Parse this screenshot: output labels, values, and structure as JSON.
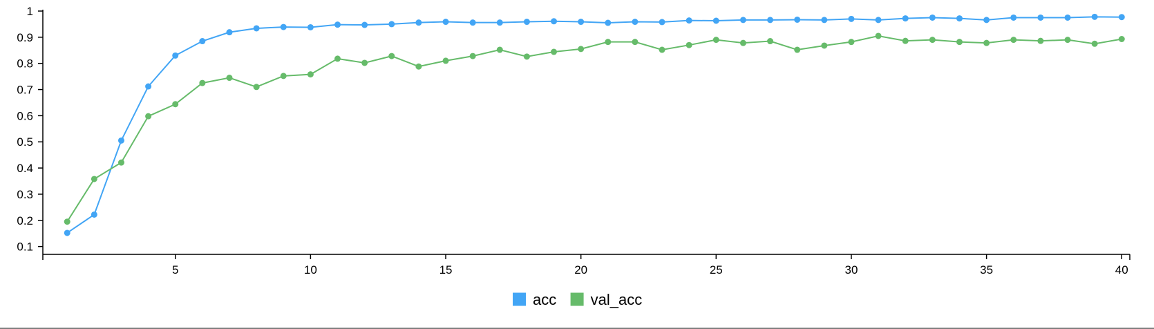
{
  "chart_data": {
    "type": "line",
    "title": "",
    "xlabel": "",
    "ylabel": "",
    "x": [
      1,
      2,
      3,
      4,
      5,
      6,
      7,
      8,
      9,
      10,
      11,
      12,
      13,
      14,
      15,
      16,
      17,
      18,
      19,
      20,
      21,
      22,
      23,
      24,
      25,
      26,
      27,
      28,
      29,
      30,
      31,
      32,
      33,
      34,
      35,
      36,
      37,
      38,
      39,
      40
    ],
    "xlim": [
      0.1,
      40.3
    ],
    "ylim": [
      0.07,
      1.0
    ],
    "xticks": [
      5,
      10,
      15,
      20,
      25,
      30,
      35,
      40
    ],
    "yticks": [
      0.1,
      0.2,
      0.3,
      0.4,
      0.5,
      0.6,
      0.7,
      0.8,
      0.9,
      1
    ],
    "xtick_labels": [
      "5",
      "10",
      "15",
      "20",
      "25",
      "30",
      "35",
      "40"
    ],
    "ytick_labels": [
      "0.1",
      "0.2",
      "0.3",
      "0.4",
      "0.5",
      "0.6",
      "0.7",
      "0.8",
      "0.9",
      "1"
    ],
    "grid": false,
    "legend_position": "bottom-center",
    "series": [
      {
        "name": "acc",
        "color": "#42a5f5",
        "values": [
          0.152,
          0.222,
          0.505,
          0.712,
          0.83,
          0.885,
          0.919,
          0.934,
          0.939,
          0.938,
          0.948,
          0.947,
          0.95,
          0.956,
          0.959,
          0.956,
          0.956,
          0.959,
          0.961,
          0.959,
          0.955,
          0.959,
          0.958,
          0.964,
          0.963,
          0.966,
          0.966,
          0.967,
          0.966,
          0.97,
          0.966,
          0.972,
          0.975,
          0.972,
          0.966,
          0.975,
          0.975,
          0.975,
          0.978,
          0.977
        ]
      },
      {
        "name": "val_acc",
        "color": "#66bb6a",
        "values": [
          0.195,
          0.358,
          0.421,
          0.598,
          0.644,
          0.725,
          0.745,
          0.71,
          0.752,
          0.758,
          0.818,
          0.802,
          0.828,
          0.788,
          0.81,
          0.828,
          0.852,
          0.826,
          0.844,
          0.855,
          0.882,
          0.882,
          0.852,
          0.87,
          0.89,
          0.878,
          0.885,
          0.852,
          0.868,
          0.882,
          0.905,
          0.886,
          0.89,
          0.882,
          0.878,
          0.89,
          0.886,
          0.89,
          0.875,
          0.893
        ]
      }
    ]
  }
}
